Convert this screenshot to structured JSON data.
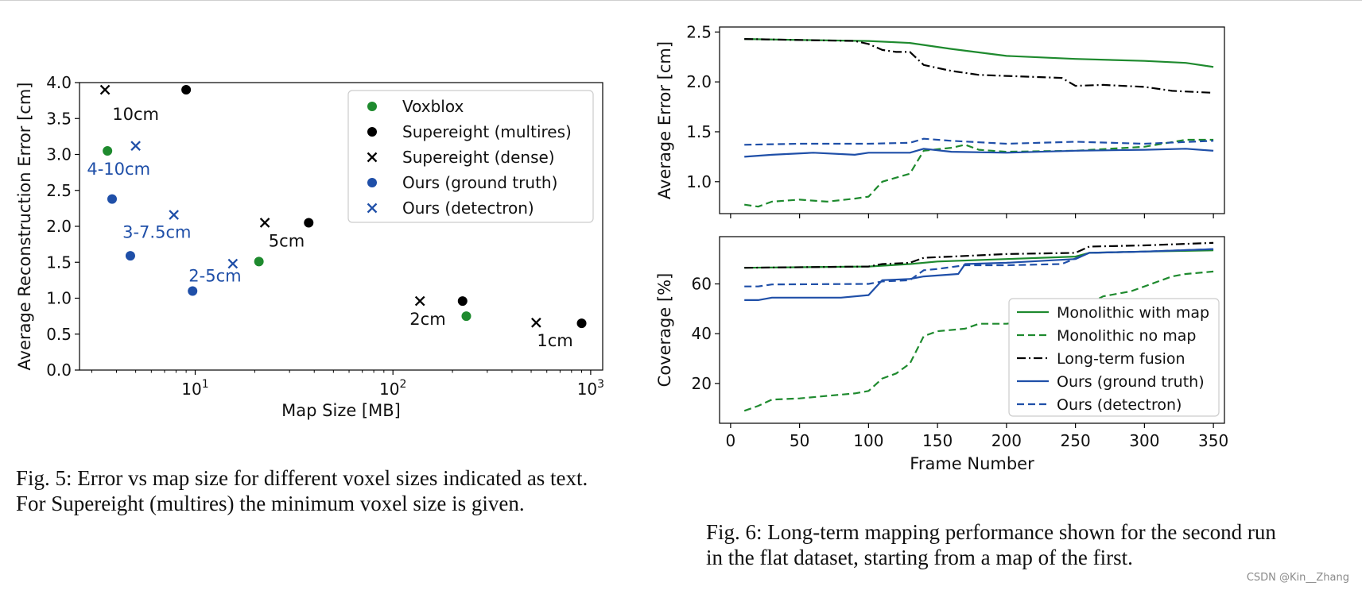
{
  "chart_data": [
    {
      "id": "fig5",
      "type": "scatter",
      "xscale": "log",
      "xlim": [
        2.6,
        1150
      ],
      "ylim": [
        0.0,
        4.0
      ],
      "xticks": [
        10,
        100,
        1000
      ],
      "xtick_labels": [
        {
          "base": "10",
          "exp": "1"
        },
        {
          "base": "10",
          "exp": "2"
        },
        {
          "base": "10",
          "exp": "3"
        }
      ],
      "yticks": [
        0.0,
        0.5,
        1.0,
        1.5,
        2.0,
        2.5,
        3.0,
        3.5,
        4.0
      ],
      "ytick_labels": [
        "0.0",
        "0.5",
        "1.0",
        "1.5",
        "2.0",
        "2.5",
        "3.0",
        "3.5",
        "4.0"
      ],
      "xlabel": "Map Size [MB]",
      "ylabel": "Average Reconstruction Error [cm]",
      "legend_position": "top-right",
      "series": [
        {
          "name": "Voxblox",
          "marker": "circle",
          "color": "#1e8a2e",
          "points": [
            [
              3.6,
              3.05
            ],
            [
              21.0,
              1.51
            ],
            [
              235,
              0.75
            ]
          ]
        },
        {
          "name": "Supereight (multires)",
          "marker": "circle",
          "color": "#000000",
          "points": [
            [
              9.0,
              3.9
            ],
            [
              37.5,
              2.05
            ],
            [
              225,
              0.96
            ],
            [
              900,
              0.65
            ]
          ]
        },
        {
          "name": "Supereight (dense)",
          "marker": "x",
          "color": "#000000",
          "points": [
            [
              3.5,
              3.9
            ],
            [
              22.5,
              2.05
            ],
            [
              137,
              0.96
            ],
            [
              530,
              0.66
            ]
          ]
        },
        {
          "name": "Ours (ground truth)",
          "marker": "circle",
          "color": "#1f4fa8",
          "points": [
            [
              3.8,
              2.38
            ],
            [
              4.7,
              1.59
            ],
            [
              9.7,
              1.1
            ]
          ]
        },
        {
          "name": "Ours (detectron)",
          "marker": "x",
          "color": "#1f4fa8",
          "points": [
            [
              5.0,
              3.12
            ],
            [
              7.8,
              2.16
            ],
            [
              15.5,
              1.48
            ]
          ]
        }
      ],
      "annotations": [
        {
          "text": "10cm",
          "x": 5.0,
          "y": 3.48,
          "color": "#111111"
        },
        {
          "text": "4-10cm",
          "x": 4.1,
          "y": 2.72,
          "color": "#1f4fa8"
        },
        {
          "text": "3-7.5cm",
          "x": 6.4,
          "y": 1.84,
          "color": "#1f4fa8"
        },
        {
          "text": "5cm",
          "x": 29.0,
          "y": 1.72,
          "color": "#111111"
        },
        {
          "text": "2-5cm",
          "x": 12.6,
          "y": 1.23,
          "color": "#1f4fa8"
        },
        {
          "text": "2cm",
          "x": 150,
          "y": 0.63,
          "color": "#111111"
        },
        {
          "text": "1cm",
          "x": 660,
          "y": 0.33,
          "color": "#111111"
        }
      ]
    },
    {
      "id": "fig6-error",
      "type": "line",
      "xlim": [
        -8,
        358
      ],
      "ylim": [
        0.68,
        2.55
      ],
      "xticks": [
        0,
        50,
        100,
        150,
        200,
        250,
        300,
        350
      ],
      "xtick_labels": [],
      "yticks": [
        1.0,
        1.5,
        2.0,
        2.5
      ],
      "ytick_labels": [
        "1.0",
        "1.5",
        "2.0",
        "2.5"
      ],
      "xlabel": "",
      "ylabel": "Average Error [cm]",
      "series": [
        {
          "name": "Monolithic with map",
          "color": "#1e8a2e",
          "dash": "solid",
          "x": [
            10,
            50,
            100,
            130,
            160,
            200,
            250,
            300,
            330,
            350
          ],
          "y": [
            2.43,
            2.42,
            2.41,
            2.39,
            2.33,
            2.26,
            2.23,
            2.21,
            2.19,
            2.15
          ]
        },
        {
          "name": "Monolithic no map",
          "color": "#1e8a2e",
          "dash": "dashed",
          "x": [
            10,
            20,
            30,
            50,
            70,
            90,
            100,
            110,
            125,
            130,
            140,
            160,
            170,
            180,
            200,
            250,
            300,
            330,
            350
          ],
          "y": [
            0.77,
            0.75,
            0.8,
            0.82,
            0.8,
            0.83,
            0.85,
            1.0,
            1.06,
            1.08,
            1.31,
            1.34,
            1.37,
            1.32,
            1.3,
            1.31,
            1.35,
            1.42,
            1.42
          ]
        },
        {
          "name": "Long-term fusion",
          "color": "#000000",
          "dash": "dashdot",
          "x": [
            10,
            90,
            100,
            110,
            120,
            130,
            140,
            160,
            180,
            200,
            240,
            250,
            270,
            300,
            320,
            350
          ],
          "y": [
            2.43,
            2.41,
            2.38,
            2.32,
            2.3,
            2.3,
            2.17,
            2.11,
            2.07,
            2.06,
            2.04,
            1.96,
            1.97,
            1.95,
            1.91,
            1.89
          ]
        },
        {
          "name": "Ours (ground truth)",
          "color": "#1f4fa8",
          "dash": "solid",
          "x": [
            10,
            30,
            60,
            90,
            100,
            130,
            140,
            160,
            200,
            250,
            300,
            330,
            350
          ],
          "y": [
            1.25,
            1.27,
            1.29,
            1.27,
            1.29,
            1.29,
            1.33,
            1.3,
            1.29,
            1.31,
            1.32,
            1.33,
            1.31
          ]
        },
        {
          "name": "Ours (detectron)",
          "color": "#1f4fa8",
          "dash": "dashed",
          "x": [
            10,
            50,
            100,
            130,
            140,
            160,
            200,
            250,
            300,
            350
          ],
          "y": [
            1.37,
            1.38,
            1.38,
            1.39,
            1.43,
            1.41,
            1.38,
            1.4,
            1.38,
            1.41
          ]
        }
      ]
    },
    {
      "id": "fig6-coverage",
      "type": "line",
      "xlim": [
        -8,
        358
      ],
      "ylim": [
        4,
        79
      ],
      "xticks": [
        0,
        50,
        100,
        150,
        200,
        250,
        300,
        350
      ],
      "xtick_labels": [
        "0",
        "50",
        "100",
        "150",
        "200",
        "250",
        "300",
        "350"
      ],
      "yticks": [
        20,
        40,
        60
      ],
      "ytick_labels": [
        "20",
        "40",
        "60"
      ],
      "xlabel": "Frame Number",
      "ylabel": "Coverage [%]",
      "legend_position": "bottom-right",
      "series": [
        {
          "name": "Monolithic with map",
          "color": "#1e8a2e",
          "dash": "solid",
          "x": [
            10,
            100,
            130,
            150,
            200,
            250,
            260,
            300,
            350
          ],
          "y": [
            66.5,
            67,
            68,
            69,
            70,
            71,
            72.5,
            73,
            73.5
          ]
        },
        {
          "name": "Monolithic no map",
          "color": "#1e8a2e",
          "dash": "dashed",
          "x": [
            10,
            20,
            30,
            50,
            70,
            90,
            100,
            110,
            120,
            130,
            140,
            150,
            170,
            180,
            200,
            230,
            250,
            260,
            270,
            290,
            300,
            310,
            320,
            330,
            350
          ],
          "y": [
            9,
            11,
            13.5,
            14,
            15,
            16,
            17,
            22,
            24,
            28,
            39,
            41,
            42,
            44,
            44,
            46,
            49,
            52,
            55,
            57,
            59,
            61,
            63,
            64,
            65
          ]
        },
        {
          "name": "Long-term fusion",
          "color": "#000000",
          "dash": "dashdot",
          "x": [
            10,
            100,
            110,
            130,
            140,
            160,
            180,
            200,
            250,
            260,
            300,
            350
          ],
          "y": [
            66.5,
            67,
            68,
            68.5,
            70.5,
            71,
            71.5,
            72,
            72.5,
            75,
            75.5,
            76.5
          ]
        },
        {
          "name": "Ours (ground truth)",
          "color": "#1f4fa8",
          "dash": "solid",
          "x": [
            10,
            20,
            30,
            80,
            100,
            110,
            130,
            140,
            165,
            170,
            200,
            250,
            260,
            300,
            350
          ],
          "y": [
            53.5,
            53.5,
            54.5,
            54.5,
            55.5,
            61.5,
            62,
            63,
            64,
            68,
            68.5,
            70,
            72.5,
            73,
            74
          ]
        },
        {
          "name": "Ours (detectron)",
          "color": "#1f4fa8",
          "dash": "dashed",
          "x": [
            10,
            20,
            30,
            100,
            110,
            130,
            140,
            150,
            170,
            200,
            240,
            260,
            300,
            350
          ],
          "y": [
            59,
            59,
            59.8,
            60,
            61,
            61.5,
            65.5,
            66,
            67.5,
            67.5,
            68,
            72.5,
            73,
            74
          ]
        }
      ]
    }
  ],
  "captions": {
    "fig5": "Fig. 5: Error vs map size for different voxel sizes indicated as text.\nFor Supereight (multires) the minimum voxel size is given.",
    "fig6": "Fig. 6: Long-term mapping performance shown for the second run\nin the flat dataset, starting from a map of the first."
  },
  "watermark": "CSDN @Kin__Zhang"
}
